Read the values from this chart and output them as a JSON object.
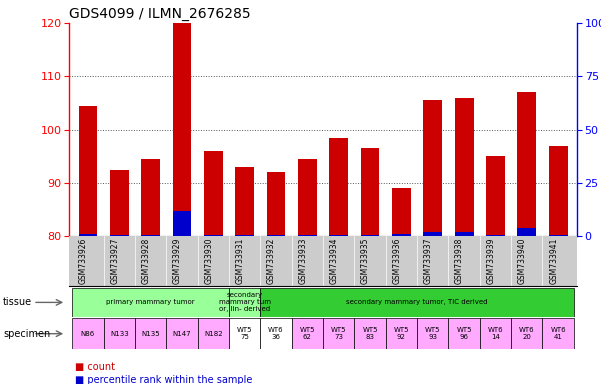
{
  "title": "GDS4099 / ILMN_2676285",
  "samples": [
    "GSM733926",
    "GSM733927",
    "GSM733928",
    "GSM733929",
    "GSM733930",
    "GSM733931",
    "GSM733932",
    "GSM733933",
    "GSM733934",
    "GSM733935",
    "GSM733936",
    "GSM733937",
    "GSM733938",
    "GSM733939",
    "GSM733940",
    "GSM733941"
  ],
  "count_values": [
    104.5,
    92.5,
    94.5,
    120,
    96,
    93,
    92,
    94.5,
    98.5,
    96.5,
    89,
    105.5,
    106,
    95,
    107,
    97
  ],
  "percentile_values": [
    1.2,
    0.4,
    0.4,
    12,
    0.4,
    0.4,
    0.4,
    0.4,
    0.4,
    0.4,
    1.2,
    2,
    2,
    0.4,
    4,
    0.4
  ],
  "ylim_left": [
    80,
    120
  ],
  "ylim_right": [
    0,
    100
  ],
  "yticks_left": [
    80,
    90,
    100,
    110,
    120
  ],
  "yticks_right": [
    0,
    25,
    50,
    75,
    100
  ],
  "bar_color_red": "#cc0000",
  "bar_color_blue": "#0000cc",
  "tissue_groups": [
    {
      "label": "primary mammary tumor",
      "color": "#99ff99",
      "start": 0,
      "end": 4
    },
    {
      "label": "secondary\nmammary tum\nor, lin- derived",
      "color": "#99ff99",
      "start": 5,
      "end": 5
    },
    {
      "label": "secondary mammary tumor, TIC derived",
      "color": "#33cc33",
      "start": 6,
      "end": 15
    }
  ],
  "specimen_labels": [
    "N86",
    "N133",
    "N135",
    "N147",
    "N182",
    "WT5\n75",
    "WT6\n36",
    "WT5\n62",
    "WT5\n73",
    "WT5\n83",
    "WT5\n92",
    "WT5\n93",
    "WT5\n96",
    "WT6\n14",
    "WT6\n20",
    "WT6\n41"
  ],
  "specimen_colors": [
    "#ffaaff",
    "#ffaaff",
    "#ffaaff",
    "#ffaaff",
    "#ffaaff",
    "#ffffff",
    "#ffffff",
    "#ffaaff",
    "#ffaaff",
    "#ffaaff",
    "#ffaaff",
    "#ffaaff",
    "#ffaaff",
    "#ffaaff",
    "#ffaaff",
    "#ffaaff"
  ],
  "xticklabel_bg": "#cccccc",
  "legend_red_text": "count",
  "legend_blue_text": "percentile rank within the sample"
}
